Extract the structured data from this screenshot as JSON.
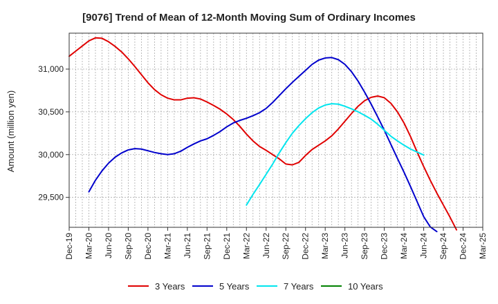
{
  "chart_data": {
    "type": "line",
    "title": "[9076]  Trend of Mean of 12-Month Moving Sum of Ordinary Incomes",
    "xlabel": "",
    "ylabel": "Amount (million yen)",
    "ylim": [
      29150,
      31420
    ],
    "yticks": [
      29500,
      30000,
      30500,
      31000
    ],
    "ytick_labels": [
      "29,500",
      "30,000",
      "30,500",
      "31,000"
    ],
    "x_categories": [
      "Dec-19",
      "Mar-20",
      "Jun-20",
      "Sep-20",
      "Dec-20",
      "Mar-21",
      "Jun-21",
      "Sep-21",
      "Dec-21",
      "Mar-22",
      "Jun-22",
      "Sep-22",
      "Dec-22",
      "Mar-23",
      "Jun-23",
      "Sep-23",
      "Dec-23",
      "Mar-24",
      "Jun-24",
      "Sep-24",
      "Dec-24",
      "Mar-25"
    ],
    "grid": true,
    "legend_position": "bottom",
    "series": [
      {
        "name": "3 Years",
        "color": "#e00000",
        "start_index": 0,
        "values": [
          31150,
          31210,
          31270,
          31330,
          31365,
          31360,
          31320,
          31265,
          31200,
          31120,
          31030,
          30935,
          30840,
          30760,
          30700,
          30660,
          30640,
          30640,
          30660,
          30665,
          30650,
          30615,
          30575,
          30530,
          30475,
          30410,
          30330,
          30240,
          30160,
          30095,
          30050,
          30000,
          29950,
          29890,
          29880,
          29910,
          29990,
          30060,
          30110,
          30160,
          30220,
          30300,
          30390,
          30480,
          30565,
          30630,
          30670,
          30685,
          30665,
          30600,
          30500,
          30370,
          30210,
          30030,
          29860,
          29700,
          29550,
          29410,
          29270,
          29120
        ]
      },
      {
        "name": "5 Years",
        "color": "#0000cc",
        "start_index": 3,
        "values": [
          29565,
          29700,
          29810,
          29900,
          29970,
          30020,
          30055,
          30070,
          30065,
          30045,
          30025,
          30010,
          30000,
          30010,
          30040,
          30085,
          30125,
          30160,
          30185,
          30225,
          30270,
          30325,
          30370,
          30400,
          30425,
          30455,
          30490,
          30540,
          30610,
          30690,
          30770,
          30845,
          30915,
          30985,
          31055,
          31105,
          31130,
          31135,
          31110,
          31055,
          30970,
          30860,
          30730,
          30590,
          30440,
          30285,
          30120,
          29955,
          29795,
          29625,
          29450,
          29275,
          29155,
          29100
        ]
      },
      {
        "name": "7 Years",
        "color": "#00e5ee",
        "start_index": 27,
        "values": [
          29410,
          29535,
          29650,
          29770,
          29890,
          30020,
          30140,
          30250,
          30340,
          30420,
          30490,
          30545,
          30580,
          30595,
          30590,
          30565,
          30535,
          30500,
          30460,
          30415,
          30355,
          30285,
          30215,
          30160,
          30110,
          30065,
          30030,
          29995
        ]
      },
      {
        "name": "10 Years",
        "color": "#008000",
        "start_index": 0,
        "values": []
      }
    ]
  }
}
